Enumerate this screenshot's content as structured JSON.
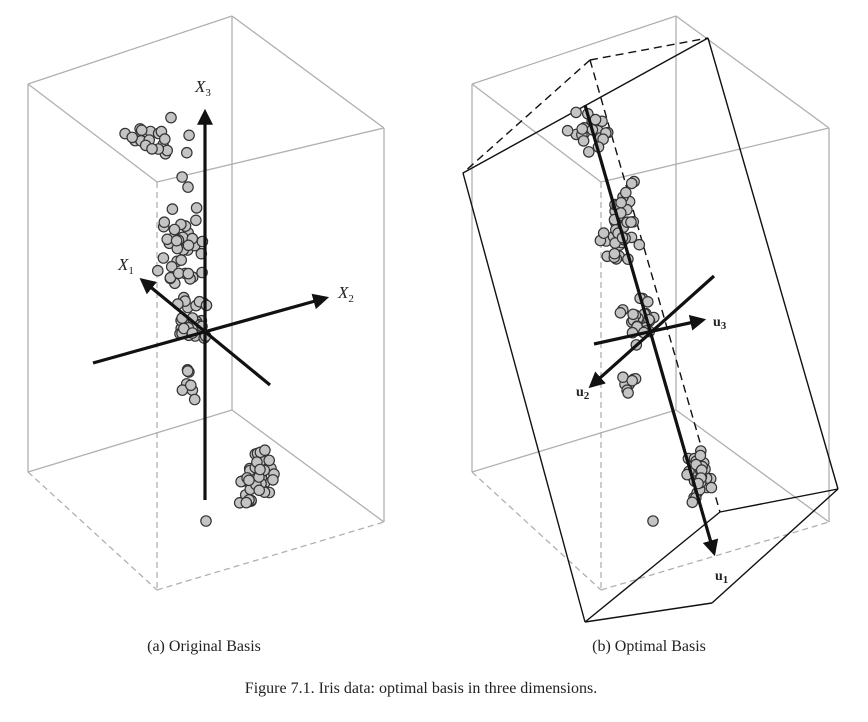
{
  "panels": [
    {
      "caption": "(a) Original Basis",
      "axes": [
        {
          "name": "X",
          "sub": "3"
        },
        {
          "name": "X",
          "sub": "1"
        },
        {
          "name": "X",
          "sub": "2"
        }
      ]
    },
    {
      "caption": "(b) Optimal Basis",
      "axes": [
        {
          "name": "u",
          "sub": "3"
        },
        {
          "name": "u",
          "sub": "2"
        },
        {
          "name": "u",
          "sub": "1"
        }
      ]
    }
  ],
  "figure_caption": "Figure 7.1.  Iris data: optimal basis in three dimensions.",
  "colors": {
    "point_fill": "#c4c4c4",
    "point_stroke": "#333333",
    "box": "#b0b0b0",
    "axis": "#111111"
  }
}
